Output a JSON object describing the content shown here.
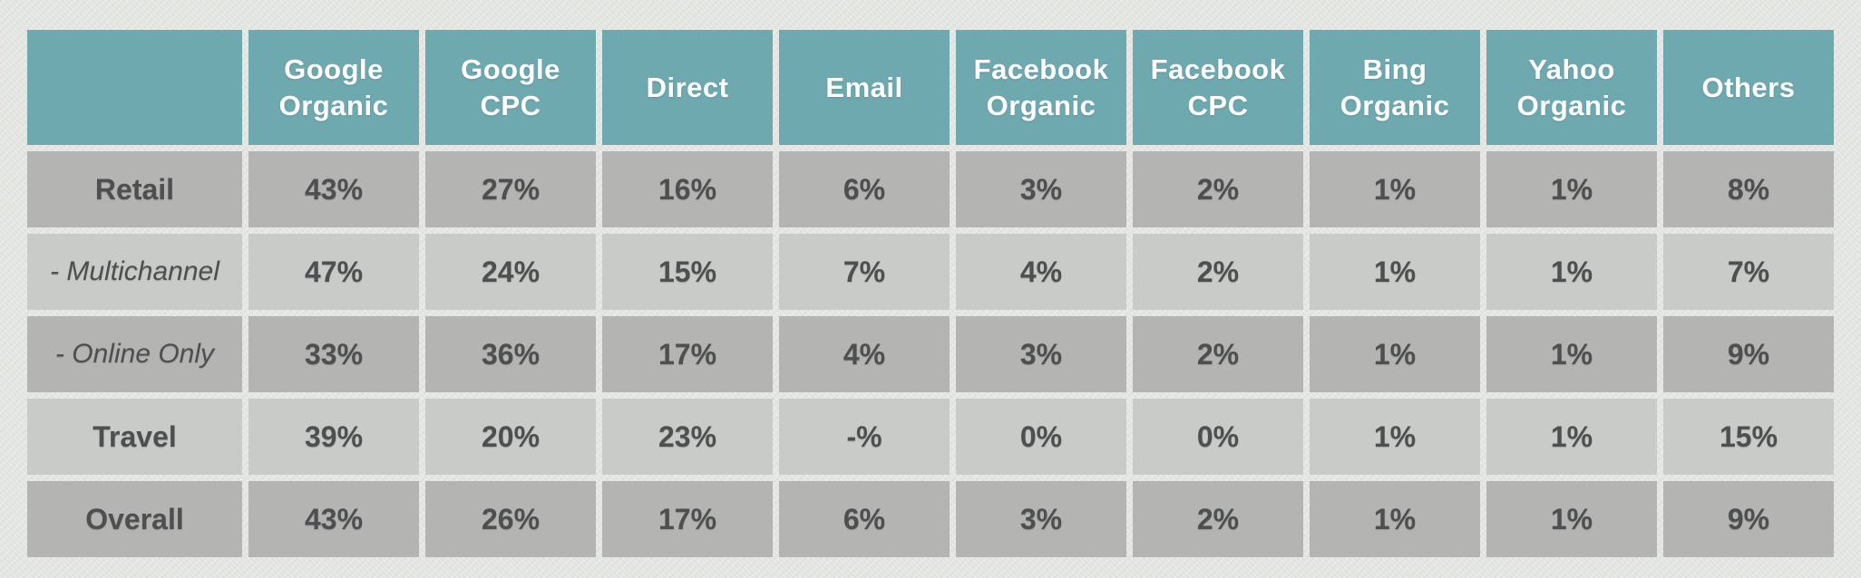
{
  "colors": {
    "canvas_bg": "#e3e5e1",
    "header_bg": "#6fa9b0",
    "row_dark": "#b4b5b3",
    "row_light": "#c9cbc8",
    "header_text": "#ffffff",
    "cell_text": "#4e4f50"
  },
  "chart_data": {
    "type": "table",
    "corner_label": "",
    "columns": [
      "Google Organic",
      "Google CPC",
      "Direct",
      "Email",
      "Facebook Organic",
      "Facebook CPC",
      "Bing Organic",
      "Yahoo Organic",
      "Others"
    ],
    "rows": [
      {
        "label": "Retail",
        "emphasis": "bold",
        "values": [
          "43%",
          "27%",
          "16%",
          "6%",
          "3%",
          "2%",
          "1%",
          "1%",
          "8%"
        ]
      },
      {
        "label": "- Multichannel",
        "emphasis": "italic",
        "values": [
          "47%",
          "24%",
          "15%",
          "7%",
          "4%",
          "2%",
          "1%",
          "1%",
          "7%"
        ]
      },
      {
        "label": "- Online Only",
        "emphasis": "italic",
        "values": [
          "33%",
          "36%",
          "17%",
          "4%",
          "3%",
          "2%",
          "1%",
          "1%",
          "9%"
        ]
      },
      {
        "label": "Travel",
        "emphasis": "bold",
        "values": [
          "39%",
          "20%",
          "23%",
          "-%",
          "0%",
          "0%",
          "1%",
          "1%",
          "15%"
        ]
      },
      {
        "label": "Overall",
        "emphasis": "bold",
        "values": [
          "43%",
          "26%",
          "17%",
          "6%",
          "3%",
          "2%",
          "1%",
          "1%",
          "9%"
        ]
      }
    ]
  }
}
